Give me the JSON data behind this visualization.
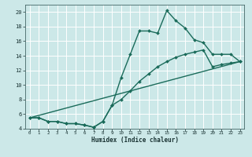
{
  "title": "",
  "xlabel": "Humidex (Indice chaleur)",
  "bg_color": "#cce8e8",
  "grid_color": "#ffffff",
  "line_color": "#1a6b5a",
  "xlim": [
    -0.5,
    23.5
  ],
  "ylim": [
    4,
    21
  ],
  "xticks": [
    0,
    1,
    2,
    3,
    4,
    5,
    6,
    7,
    8,
    9,
    10,
    11,
    12,
    13,
    14,
    15,
    16,
    17,
    18,
    19,
    20,
    21,
    22,
    23
  ],
  "yticks": [
    4,
    6,
    8,
    10,
    12,
    14,
    16,
    18,
    20
  ],
  "line1_x": [
    0,
    1,
    2,
    3,
    4,
    5,
    6,
    7,
    8,
    9,
    10,
    11,
    12,
    13,
    14,
    15,
    16,
    17,
    18,
    19,
    20,
    21,
    22,
    23
  ],
  "line1_y": [
    5.5,
    5.5,
    5.0,
    5.0,
    4.7,
    4.7,
    4.5,
    4.2,
    5.0,
    7.2,
    11.0,
    14.2,
    17.4,
    17.4,
    17.1,
    20.2,
    18.8,
    17.8,
    16.2,
    15.8,
    14.2,
    14.2,
    14.2,
    13.2
  ],
  "line2_x": [
    0,
    1,
    2,
    3,
    4,
    5,
    6,
    7,
    8,
    9,
    10,
    11,
    12,
    13,
    14,
    15,
    16,
    17,
    18,
    19,
    20,
    21,
    22,
    23
  ],
  "line2_y": [
    5.5,
    5.5,
    5.0,
    5.0,
    4.7,
    4.7,
    4.5,
    4.2,
    5.0,
    7.2,
    8.0,
    9.2,
    10.5,
    11.5,
    12.5,
    13.2,
    13.8,
    14.2,
    14.5,
    14.8,
    12.5,
    12.8,
    13.0,
    13.2
  ],
  "line3_x": [
    0,
    23
  ],
  "line3_y": [
    5.5,
    13.2
  ],
  "marker": "D",
  "markersize": 2.0,
  "linewidth": 1.0
}
